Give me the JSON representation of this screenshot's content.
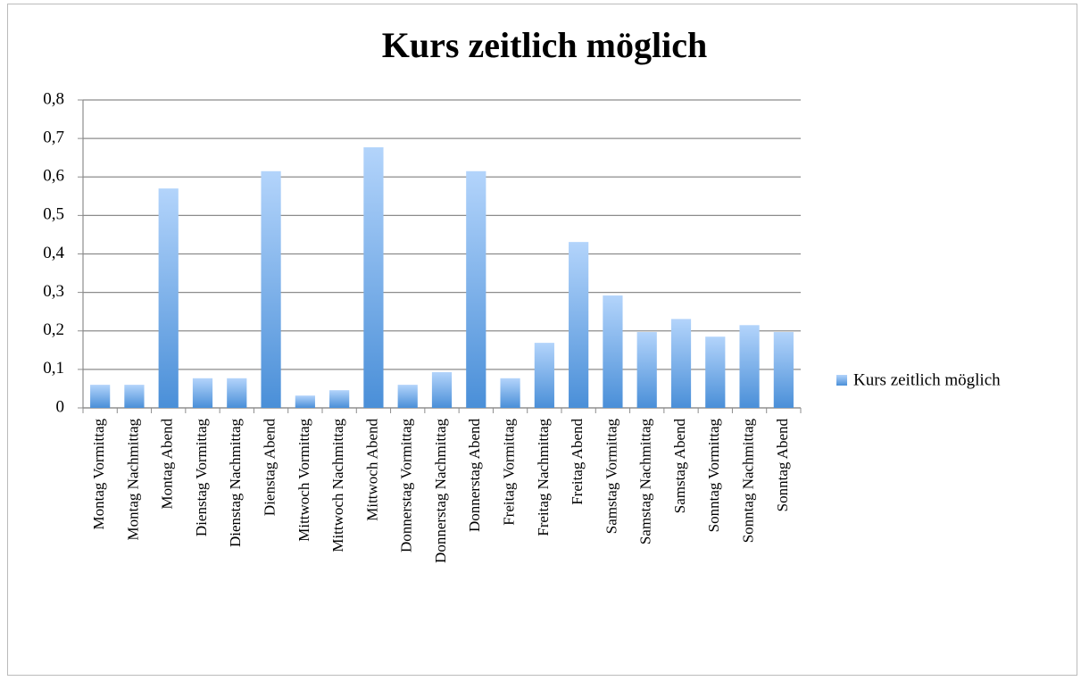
{
  "chart_data": {
    "type": "bar",
    "title": "Kurs zeitlich möglich",
    "categories": [
      "Montag Vormittag",
      "Montag Nachmittag",
      "Montag Abend",
      "Dienstag Vormittag",
      "Dienstag Nachmittag",
      "Dienstag Abend",
      "Mittwoch Vormittag",
      "Mittwoch Nachmittag",
      "Mittwoch Abend",
      "Donnerstag Vormittag",
      "Donnerstag Nachmittag",
      "Donnerstag Abend",
      "Freitag Vormittag",
      "Freitag Nachmittag",
      "Freitag Abend",
      "Samstag Vormittag",
      "Samstag Nachmittag",
      "Samstag Abend",
      "Sonntag Vormittag",
      "Sonntag Nachmittag",
      "Sonntag Abend"
    ],
    "series": [
      {
        "name": "Kurs zeitlich möglich",
        "color": "#4a8fd8",
        "values": [
          0.06,
          0.06,
          0.57,
          0.077,
          0.077,
          0.615,
          0.032,
          0.046,
          0.677,
          0.06,
          0.093,
          0.615,
          0.077,
          0.169,
          0.431,
          0.292,
          0.197,
          0.231,
          0.185,
          0.215,
          0.197
        ]
      }
    ],
    "ylim": [
      0,
      0.8
    ],
    "yticks": [
      0,
      {
        "value": 0.1,
        "label": "0,1"
      },
      {
        "value": 0.2,
        "label": "0,2"
      },
      {
        "value": 0.3,
        "label": "0,3"
      },
      {
        "value": 0.4,
        "label": "0,4"
      },
      {
        "value": 0.5,
        "label": "0,5"
      },
      {
        "value": 0.6,
        "label": "0,6"
      },
      {
        "value": 0.7,
        "label": "0,7"
      },
      {
        "value": 0.8,
        "label": "0,8"
      }
    ],
    "grid": true,
    "legend": "right"
  }
}
